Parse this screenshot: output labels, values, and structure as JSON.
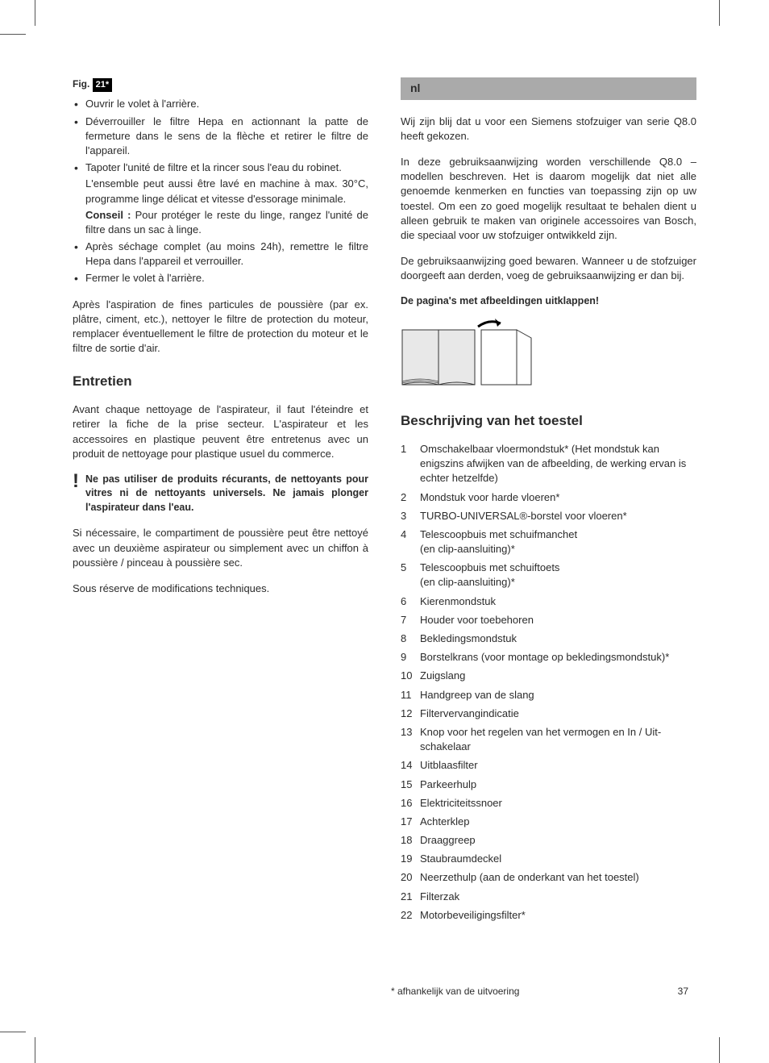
{
  "crop_color": "#555555",
  "left": {
    "fig_label_prefix": "Fig.",
    "fig_number": "21*",
    "bullets": [
      {
        "text": "Ouvrir le volet à l'arrière."
      },
      {
        "text": "Déverrouiller le filtre Hepa en actionnant la patte de fermeture dans le sens de la flèche et retirer le filtre de l'appareil."
      },
      {
        "text": "Tapoter l'unité de filtre et la rincer sous l'eau du robinet.",
        "sub": "L'ensemble peut aussi être lavé en machine à max. 30°C, programme linge délicat et vitesse d'essorage minimale.",
        "conseil_label": "Conseil :",
        "conseil_text": "Pour protéger le reste du linge, rangez l'unité de filtre dans un sac à linge."
      },
      {
        "text": "Après séchage complet (au moins 24h), remettre le filtre Hepa dans l'appareil et verrouiller."
      },
      {
        "text": "Fermer le volet à l'arrière."
      }
    ],
    "after_bullets": "Après l'aspiration de fines particules de poussière (par ex. plâtre, ciment, etc.), nettoyer le filtre de protection du moteur, remplacer éventuellement le filtre de protection du moteur et le filtre de sortie d'air.",
    "section_title": "Entretien",
    "entretien_p1": "Avant chaque nettoyage de l'aspirateur, il faut l'éteindre et retirer la fiche de la prise secteur. L'aspirateur et les accessoires en plastique peuvent être entretenus avec un produit de nettoyage pour plastique usuel du commerce.",
    "warning_text": "Ne pas utiliser de produits récurants, de nettoyants pour vitres ni de nettoyants universels. Ne jamais plonger l'aspirateur dans l'eau.",
    "entretien_p2": "Si nécessaire, le compartiment de poussière peut être nettoyé avec un deuxième aspirateur ou simplement avec un chiffon à poussière / pinceau à poussière sec.",
    "entretien_p3": "Sous réserve de modifications techniques."
  },
  "right": {
    "lang_code": "nl",
    "intro_p1": "Wij zijn blij dat u voor een Siemens stofzuiger van serie Q8.0 heeft gekozen.",
    "intro_p2": "In deze gebruiksaanwijzing worden verschillende Q8.0 – modellen beschreven. Het is daarom mogelijk dat niet alle genoemde kenmerken en functies van toepassing zijn op uw toestel. Om een zo goed mogelijk resultaat te behalen dient u alleen gebruik te maken van originele accessoires van Bosch, die speciaal voor uw stofzuiger ontwikkeld zijn.",
    "intro_p3": "De gebruiksaanwijzing goed bewaren. Wanneer u de stofzuiger doorgeeft aan derden, voeg de gebruiksaanwijzing er dan bij.",
    "unfold_title": "De pagina's met afbeeldingen uitklappen!",
    "section_title": "Beschrijving van het toestel",
    "items": [
      "Omschakelbaar vloermondstuk* (Het mondstuk kan enigszins afwijken van de afbeelding, de werking ervan is echter hetzelfde)",
      "Mondstuk voor harde vloeren*",
      "TURBO-UNIVERSAL®-borstel voor vloeren*",
      "Telescoopbuis met schuifmanchet\n(en clip-aansluiting)*",
      "Telescoopbuis met schuiftoets\n(en clip-aansluiting)*",
      "Kierenmondstuk",
      "Houder voor toebehoren",
      "Bekledingsmondstuk",
      "Borstelkrans (voor montage op bekledingsmondstuk)*",
      "Zuigslang",
      "Handgreep van de slang",
      "Filtervervangindicatie",
      "Knop voor het regelen van het vermogen en In / Uit-schakelaar",
      "Uitblaasfilter",
      "Parkeerhulp",
      "Elektriciteitssnoer",
      "Achterklep",
      "Draaggreep",
      "Staubraumdeckel",
      "Neerzethulp (aan de onderkant van het toestel)",
      "Filterzak",
      "Motorbeveiligingsfilter*"
    ]
  },
  "footnote": "* afhankelijk van de uitvoering",
  "page_number": "37"
}
